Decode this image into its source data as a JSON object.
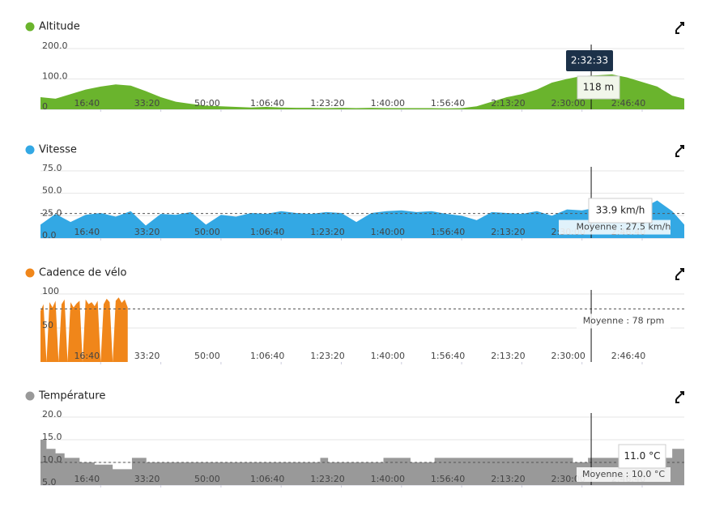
{
  "chart_data": [
    {
      "type": "area",
      "title": "Altitude",
      "color": "#6ab42d",
      "x": [
        0,
        250,
        500,
        750,
        1000,
        1250,
        1500,
        1750,
        2000,
        2250,
        2500,
        2750,
        3000,
        3250,
        3500,
        3750,
        4000,
        4250,
        4500,
        4750,
        5000,
        5250,
        5500,
        5750,
        6000,
        6250,
        6500,
        6750,
        7000,
        7250,
        7500,
        7750,
        8000,
        8250,
        8500,
        8750,
        9000,
        9250,
        9500,
        9750,
        10000,
        10250,
        10500,
        10700
      ],
      "values": [
        40,
        35,
        50,
        65,
        75,
        82,
        78,
        60,
        40,
        25,
        18,
        12,
        10,
        8,
        6,
        8,
        6,
        5,
        5,
        4,
        5,
        4,
        5,
        4,
        4,
        4,
        4,
        3,
        4,
        10,
        25,
        40,
        50,
        65,
        88,
        100,
        110,
        112,
        115,
        105,
        90,
        75,
        45,
        35
      ],
      "xlim": [
        0,
        10700
      ],
      "xticks": [
        {
          "value": 1000,
          "label": "16:40"
        },
        {
          "value": 2000,
          "label": "33:20"
        },
        {
          "value": 3000,
          "label": "50:00"
        },
        {
          "value": 4000,
          "label": "1:06:40"
        },
        {
          "value": 5000,
          "label": "1:23:20"
        },
        {
          "value": 6000,
          "label": "1:40:00"
        },
        {
          "value": 7000,
          "label": "1:56:40"
        },
        {
          "value": 8000,
          "label": "2:13:20"
        },
        {
          "value": 9000,
          "label": "2:30:00"
        },
        {
          "value": 10000,
          "label": "2:46:40"
        }
      ],
      "ylim": [
        0,
        200
      ],
      "yticks": [
        0,
        {
          "value": 100,
          "label": "100.0"
        },
        {
          "value": 200,
          "label": "200.0"
        }
      ],
      "tooltip": {
        "x": 9153,
        "time_label": "2:32:33",
        "value_label": "118 m"
      }
    },
    {
      "type": "area",
      "title": "Vitesse",
      "color": "#33a8e4",
      "x": [
        0,
        250,
        500,
        750,
        1000,
        1250,
        1500,
        1750,
        2000,
        2250,
        2500,
        2750,
        3000,
        3250,
        3500,
        3750,
        4000,
        4250,
        4500,
        4750,
        5000,
        5250,
        5500,
        5750,
        6000,
        6250,
        6500,
        6750,
        7000,
        7250,
        7500,
        7750,
        8000,
        8250,
        8500,
        8750,
        9000,
        9250,
        9500,
        9750,
        10000,
        10250,
        10500,
        10700
      ],
      "values": [
        15,
        27,
        18,
        26,
        28,
        24,
        30,
        14,
        27,
        26,
        29,
        15,
        26,
        24,
        28,
        27,
        30,
        28,
        27,
        29,
        28,
        18,
        28,
        30,
        31,
        29,
        30,
        27,
        25,
        20,
        29,
        28,
        27,
        30,
        25,
        32,
        31,
        34,
        35,
        28,
        33,
        42,
        30,
        15
      ],
      "xlim": [
        0,
        10700
      ],
      "xticks": [
        {
          "value": 1000,
          "label": "16:40"
        },
        {
          "value": 2000,
          "label": "33:20"
        },
        {
          "value": 3000,
          "label": "50:00"
        },
        {
          "value": 4000,
          "label": "1:06:40"
        },
        {
          "value": 5000,
          "label": "1:23:20"
        },
        {
          "value": 6000,
          "label": "1:40:00"
        },
        {
          "value": 7000,
          "label": "1:56:40"
        },
        {
          "value": 8000,
          "label": "2:13:20"
        },
        {
          "value": 9000,
          "label": "2:30:00"
        },
        {
          "value": 10000,
          "label": "2:46:40"
        }
      ],
      "ylim": [
        0,
        75
      ],
      "yticks": [
        {
          "value": 0,
          "label": "0.0"
        },
        {
          "value": 25,
          "label": "25.0"
        },
        {
          "value": 50,
          "label": "50.0"
        },
        {
          "value": 75,
          "label": "75.0"
        }
      ],
      "average": {
        "value": 27.5,
        "label": "Moyenne : 27.5 km/h"
      },
      "tooltip": {
        "x": 9153,
        "value_label": "33.9 km/h"
      }
    },
    {
      "type": "area",
      "title": "Cadence de vélo",
      "color": "#f0861a",
      "x": [
        0,
        50,
        100,
        150,
        200,
        250,
        300,
        350,
        400,
        450,
        500,
        550,
        600,
        650,
        700,
        750,
        800,
        850,
        900,
        950,
        1000,
        1050,
        1100,
        1150,
        1200,
        1250,
        1300,
        1350,
        1400,
        1450
      ],
      "values": [
        75,
        85,
        0,
        88,
        80,
        90,
        0,
        85,
        92,
        0,
        88,
        80,
        86,
        90,
        0,
        92,
        85,
        88,
        82,
        90,
        0,
        85,
        93,
        88,
        0,
        90,
        95,
        87,
        92,
        80
      ],
      "xlim": [
        0,
        10700
      ],
      "xticks": [
        {
          "value": 1000,
          "label": "16:40"
        },
        {
          "value": 2000,
          "label": "33:20"
        },
        {
          "value": 3000,
          "label": "50:00"
        },
        {
          "value": 4000,
          "label": "1:06:40"
        },
        {
          "value": 5000,
          "label": "1:23:20"
        },
        {
          "value": 6000,
          "label": "1:40:00"
        },
        {
          "value": 7000,
          "label": "1:56:40"
        },
        {
          "value": 8000,
          "label": "2:13:20"
        },
        {
          "value": 9000,
          "label": "2:30:00"
        },
        {
          "value": 10000,
          "label": "2:46:40"
        }
      ],
      "ylim": [
        0,
        100
      ],
      "yticks": [
        50,
        100
      ],
      "average": {
        "value": 78,
        "label": "Moyenne : 78 rpm"
      },
      "tooltip": {
        "x": 9153
      }
    },
    {
      "type": "step-area",
      "title": "Température",
      "color": "#999999",
      "x": [
        0,
        100,
        250,
        400,
        650,
        900,
        1200,
        1520,
        1760,
        4650,
        4780,
        5700,
        6150,
        6550,
        8850,
        9100,
        10500,
        10700
      ],
      "values": [
        15,
        13,
        12,
        11,
        10,
        9.5,
        8.5,
        11,
        10,
        11,
        10,
        11,
        10,
        11,
        10,
        11,
        13,
        13
      ],
      "xlim": [
        0,
        10700
      ],
      "xticks": [
        {
          "value": 1000,
          "label": "16:40"
        },
        {
          "value": 2000,
          "label": "33:20"
        },
        {
          "value": 3000,
          "label": "50:00"
        },
        {
          "value": 4000,
          "label": "1:06:40"
        },
        {
          "value": 5000,
          "label": "1:23:20"
        },
        {
          "value": 6000,
          "label": "1:40:00"
        },
        {
          "value": 7000,
          "label": "1:56:40"
        },
        {
          "value": 8000,
          "label": "2:13:20"
        },
        {
          "value": 9000,
          "label": "2:30:00"
        },
        {
          "value": 10000,
          "label": "2:46:40"
        }
      ],
      "ylim": [
        5,
        20
      ],
      "yticks": [
        {
          "value": 5,
          "label": "5.0"
        },
        {
          "value": 10,
          "label": "10.0"
        },
        {
          "value": 15,
          "label": "15.0"
        },
        {
          "value": 20,
          "label": "20.0"
        }
      ],
      "average": {
        "value": 10,
        "label": "Moyenne : 10.0 °C"
      },
      "tooltip": {
        "x": 9153,
        "value_label": "11.0 °C"
      }
    }
  ]
}
